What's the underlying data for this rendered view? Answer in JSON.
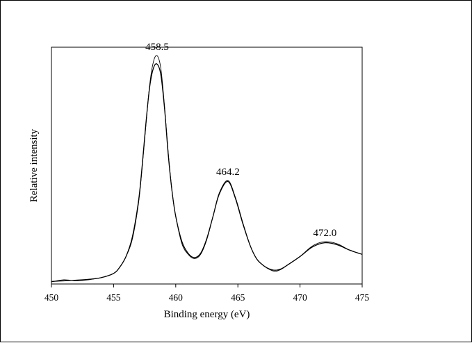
{
  "chart_data": {
    "type": "line",
    "title": "",
    "xlabel": "Binding energy (eV)",
    "ylabel": "Relative intensity",
    "xlim": [
      450,
      475
    ],
    "ylim": [
      0,
      1.12
    ],
    "x_ticks": [
      "450",
      "455",
      "460",
      "465",
      "470",
      "475"
    ],
    "y_ticks_shown": false,
    "grid": false,
    "legend": "none",
    "annotations": [
      {
        "text": "458.5",
        "x": 458.5
      },
      {
        "text": "464.2",
        "x": 464.2
      },
      {
        "text": "472.0",
        "x": 472.0
      }
    ],
    "series": [
      {
        "style": "raw-noisy",
        "color": "#000000",
        "x": [
          450,
          451,
          452,
          453,
          454,
          455,
          455.5,
          456,
          456.5,
          457,
          457.3,
          457.6,
          457.9,
          458.2,
          458.5,
          458.8,
          459.1,
          459.4,
          459.7,
          460,
          460.5,
          461,
          461.5,
          462,
          462.5,
          463,
          463.5,
          464.2,
          464.8,
          465.4,
          466,
          466.5,
          467,
          467.5,
          468,
          468.5,
          469,
          470,
          471,
          472,
          473,
          474,
          475
        ],
        "y": [
          0.01,
          0.02,
          0.015,
          0.02,
          0.03,
          0.05,
          0.08,
          0.13,
          0.21,
          0.38,
          0.55,
          0.75,
          0.94,
          1.05,
          1.08,
          1.02,
          0.84,
          0.62,
          0.44,
          0.32,
          0.19,
          0.14,
          0.12,
          0.14,
          0.21,
          0.32,
          0.43,
          0.49,
          0.41,
          0.29,
          0.18,
          0.12,
          0.09,
          0.07,
          0.06,
          0.07,
          0.09,
          0.13,
          0.18,
          0.2,
          0.19,
          0.16,
          0.14
        ]
      },
      {
        "style": "fitted",
        "color": "#000000",
        "x": [
          450,
          451,
          452,
          453,
          454,
          455,
          455.5,
          456,
          456.5,
          457,
          457.3,
          457.6,
          457.9,
          458.2,
          458.5,
          458.8,
          459.1,
          459.4,
          459.7,
          460,
          460.5,
          461,
          461.5,
          462,
          462.5,
          463,
          463.5,
          464.2,
          464.8,
          465.4,
          466,
          466.5,
          467,
          467.5,
          468,
          468.5,
          469,
          470,
          471,
          472,
          473,
          474,
          475
        ],
        "y": [
          0.012,
          0.015,
          0.018,
          0.022,
          0.03,
          0.05,
          0.08,
          0.13,
          0.22,
          0.39,
          0.56,
          0.76,
          0.93,
          1.02,
          1.04,
          0.99,
          0.83,
          0.61,
          0.44,
          0.32,
          0.2,
          0.145,
          0.125,
          0.145,
          0.215,
          0.32,
          0.425,
          0.485,
          0.405,
          0.285,
          0.18,
          0.12,
          0.09,
          0.072,
          0.065,
          0.072,
          0.09,
          0.13,
          0.175,
          0.195,
          0.185,
          0.16,
          0.14
        ]
      }
    ]
  }
}
